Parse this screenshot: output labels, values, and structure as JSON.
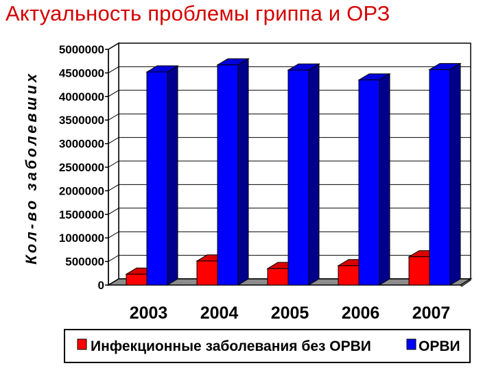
{
  "title": "Актуальность проблемы гриппа и ОРЗ",
  "chart_data": {
    "type": "bar",
    "title": "",
    "xlabel": "",
    "ylabel": "Кол-во заболевших",
    "ylim": [
      0,
      5000000
    ],
    "yticks": [
      "5000000",
      "4500000",
      "4000000",
      "3500000",
      "3000000",
      "2500000",
      "2000000",
      "1500000",
      "1000000",
      "500000",
      "0"
    ],
    "categories": [
      "2003",
      "2004",
      "2005",
      "2006",
      "2007"
    ],
    "series": [
      {
        "name": "Инфекционные заболевания без ОРВИ",
        "color": "#ff0000",
        "values": [
          230000,
          510000,
          350000,
          410000,
          600000
        ]
      },
      {
        "name": "ОРВИ",
        "color": "#0000ff",
        "values": [
          4520000,
          4670000,
          4560000,
          4350000,
          4570000
        ]
      }
    ],
    "grid": true,
    "legend_position": "bottom",
    "style": "3d-columns"
  }
}
